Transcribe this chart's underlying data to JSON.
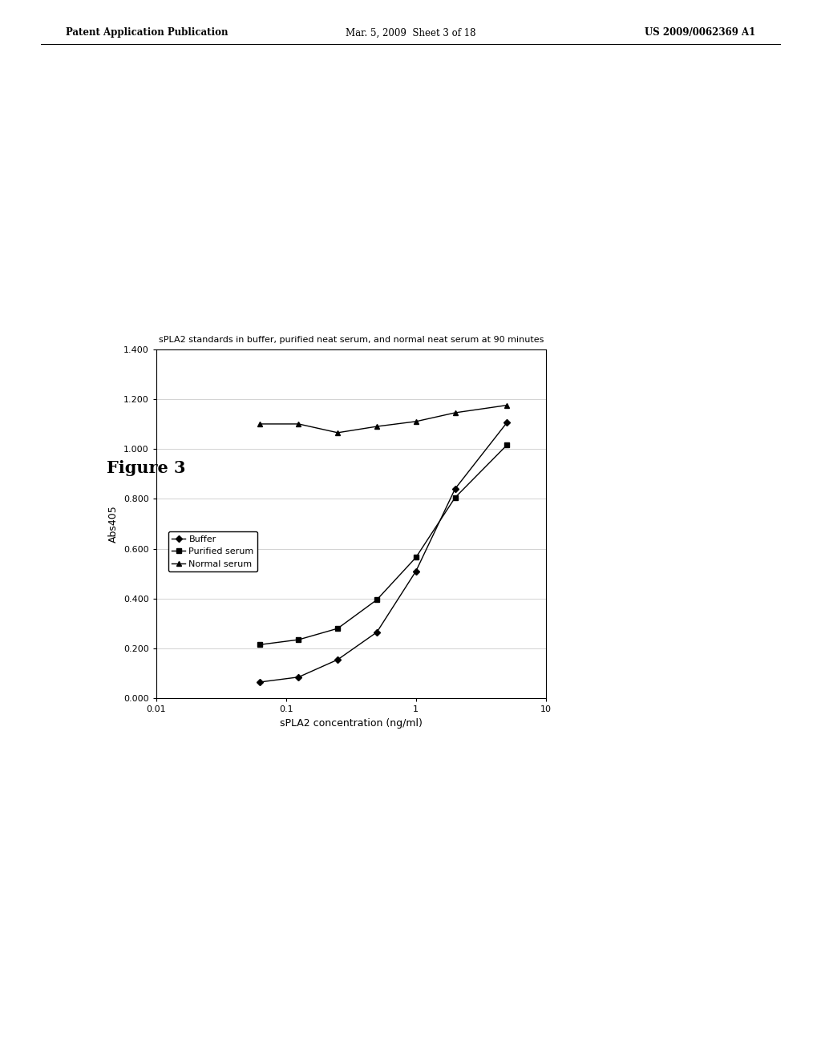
{
  "title": "sPLA2 standards in buffer, purified neat serum, and normal neat serum at 90 minutes",
  "xlabel": "sPLA2 concentration (ng/ml)",
  "ylabel": "Abs405",
  "figure_label": "Figure 3",
  "header_left": "Patent Application Publication",
  "header_mid": "Mar. 5, 2009  Sheet 3 of 18",
  "header_right": "US 2009/0062369 A1",
  "ylim": [
    0.0,
    1.4
  ],
  "yticks": [
    0.0,
    0.2,
    0.4,
    0.6,
    0.8,
    1.0,
    1.2,
    1.4
  ],
  "xtick_vals": [
    0.01,
    0.1,
    1,
    10
  ],
  "xtick_labels": [
    "0.01",
    "0.1",
    "1",
    "10"
  ],
  "buffer_x": [
    0.063,
    0.125,
    0.25,
    0.5,
    1.0,
    2.0,
    5.0
  ],
  "buffer_y": [
    0.065,
    0.085,
    0.155,
    0.265,
    0.51,
    0.84,
    1.105
  ],
  "purified_x": [
    0.063,
    0.125,
    0.25,
    0.5,
    1.0,
    2.0,
    5.0
  ],
  "purified_y": [
    0.215,
    0.235,
    0.28,
    0.395,
    0.565,
    0.805,
    1.015
  ],
  "normal_x": [
    0.063,
    0.125,
    0.25,
    0.5,
    1.0,
    2.0,
    5.0
  ],
  "normal_y": [
    1.1,
    1.1,
    1.065,
    1.09,
    1.11,
    1.145,
    1.175
  ],
  "line_color": "#000000",
  "bg_color": "#ffffff",
  "plot_bg": "#ffffff",
  "legend_labels": [
    "Buffer",
    "Purified serum",
    "Normal serum"
  ],
  "title_fontsize": 8,
  "axis_label_fontsize": 9,
  "tick_fontsize": 8,
  "legend_fontsize": 8,
  "figure_label_fontsize": 15
}
